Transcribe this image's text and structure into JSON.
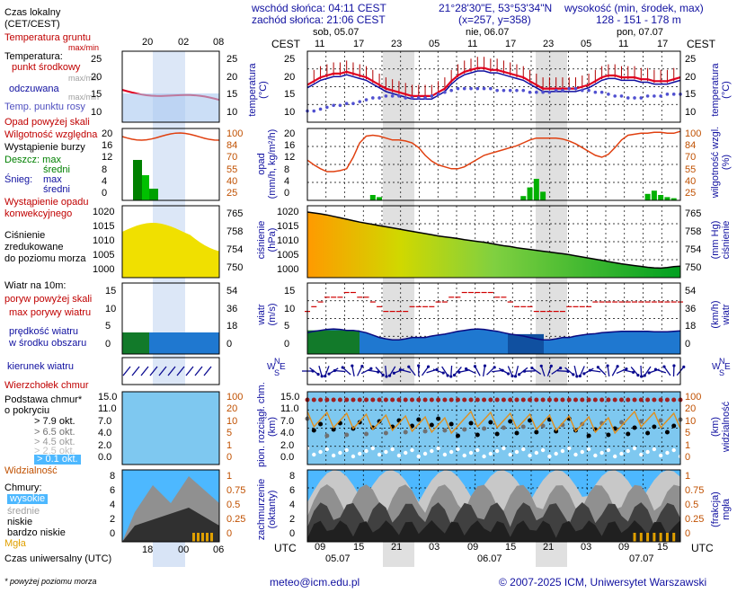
{
  "header": {
    "sunrise": "wschód słońca: 04:11 CEST",
    "sunset": "zachód słońca: 21:06 CEST",
    "coords": "21°28'30\"E, 53°53'34\"N",
    "grid": "(x=257, y=358)",
    "elevation_label": "wysokość (min, środek, max)",
    "elevation_values": "128 - 151 - 178 m"
  },
  "legend": {
    "local_time": "Czas lokalny\n(CET/CEST)",
    "ground_temp": "Temperatura gruntu",
    "maxmin": "max/min",
    "temperature": "Temperatura:",
    "point_mid": "punkt środkowy",
    "max_min": "max/min",
    "feels": "odczuwana",
    "feels_maxmin": "max/min",
    "dew": "Temp. punktu rosy",
    "precip_above": "Opad powyżej skali",
    "humidity": "Wilgotność względna",
    "storm": "Wystąpienie burzy",
    "rain": "Deszcz: max",
    "rain_mid": "średni",
    "snow": "Śnieg:",
    "snow_max": "max",
    "snow_mid": "średni",
    "precip_occ": "Wystąpienie opadu\nkonwekcyjnego",
    "pressure": "Ciśnienie\nzredukowane\ndo poziomu morza",
    "wind": "Wiatr na 10m:",
    "gusts_above": "poryw powyżej skali",
    "gust_max": "max porywy wiatru",
    "wind_speed": "prędkość wiatru\nw środku obszaru",
    "wind_dir": "kierunek wiatru",
    "cb_top": "Wierzchołek chmur",
    "cloud_base": "Podstawa chmur*\no pokryciu",
    "c79": "> 7.9 okt.",
    "c65": "> 6.5 okt.",
    "c45": "> 4.5 okt.",
    "c25": "> 2.5 okt.",
    "c01": "> 0.1 okt.",
    "visibility": "Widzialność",
    "clouds": "Chmury:",
    "high": "wysokie",
    "mid": "średnie",
    "low": "niskie",
    "very_low": "bardzo niskie",
    "fog": "Mgła",
    "utc": "Czas uniwersalny (UTC)",
    "footnote": "* powyżej poziomu morza"
  },
  "axis_titles": {
    "cest": "CEST",
    "utc": "UTC",
    "temp_l": "temperatura\n(°C)",
    "temp_r": "temperatura\n(°C)",
    "precip_l": "opad\n(mm/h, kg/m²/h)",
    "hum_r": "wilgotność wzgl.\n(%)",
    "press_l": "ciśnienie\n(hPa)",
    "press_r": "(mm Hg)\nciśnienie",
    "wind_l": "wiatr\n(m/s)",
    "wind_r": "(km/h)\nwiatr",
    "cloud_l": "pion. rozciągł. chm.\n(km)",
    "vis_r": "(km)\nwidzialność",
    "cov_l": "zachmurzenie\n(oktanty)",
    "fog_r": "(frakcja)\nmgła"
  },
  "compass": {
    "n": "N",
    "s": "S",
    "w": "W",
    "e": "E"
  },
  "days_top": [
    "sob, 05.07",
    "nie, 06.07",
    "pon, 07.07"
  ],
  "days_bottom": [
    "05.07",
    "06.07",
    "07.07"
  ],
  "cest_ticks": [
    "11",
    "17",
    "23",
    "05",
    "11",
    "17",
    "23",
    "05",
    "11",
    "17"
  ],
  "utc_ticks": [
    "09",
    "15",
    "21",
    "03",
    "09",
    "15",
    "21",
    "03",
    "09",
    "15"
  ],
  "legend_top_ticks": [
    "20",
    "02",
    "08"
  ],
  "legend_bottom_ticks": [
    "18",
    "00",
    "06"
  ],
  "footer": {
    "email": "meteo@icm.edu.pl",
    "copyright": "© 2007-2025 ICM, Uniwersytet Warszawski"
  },
  "colors": {
    "red": "#c80000",
    "blue": "#1010a0",
    "green": "#00a000",
    "orange": "#e07000",
    "night": "#e0e0e0",
    "brown": "#a02020"
  },
  "chart_data": [
    {
      "type": "line",
      "name": "temperature",
      "x": [
        "09",
        "10",
        "11",
        "12",
        "13",
        "14",
        "15",
        "16",
        "17",
        "18",
        "19",
        "20",
        "21",
        "22",
        "23",
        "00",
        "01",
        "02",
        "03",
        "04",
        "05",
        "06",
        "07",
        "08",
        "09",
        "10",
        "11",
        "12",
        "13",
        "14",
        "15",
        "16",
        "17",
        "18",
        "19",
        "20",
        "21",
        "22",
        "23",
        "00",
        "01",
        "02",
        "03",
        "04",
        "05",
        "06",
        "07",
        "08",
        "09",
        "10",
        "11",
        "12",
        "13",
        "14",
        "15",
        "16",
        "17",
        "18"
      ],
      "ylim": [
        8,
        27
      ],
      "yticks_left": [
        "25",
        "20",
        "15",
        "10"
      ],
      "yticks_right": [
        "25",
        "20",
        "15",
        "10"
      ],
      "series": [
        {
          "values": [
            18,
            19,
            20,
            20.5,
            21,
            21,
            21.5,
            21,
            20.5,
            20,
            19,
            18,
            17,
            16.5,
            16,
            15.5,
            15,
            15,
            15,
            15,
            16,
            17,
            19,
            20.5,
            21.5,
            22,
            22.5,
            22.5,
            22,
            22,
            21.5,
            21,
            20.5,
            20,
            19,
            18,
            17,
            17,
            17,
            17,
            17,
            17,
            17.5,
            18,
            19,
            20,
            20.5,
            20.5,
            20,
            20,
            20,
            19.5,
            19.5,
            19,
            19,
            19,
            19.5,
            20
          ]
        },
        {
          "values": [
            11,
            11,
            11.5,
            12,
            12.5,
            12.5,
            13,
            13,
            13.5,
            14,
            14.5,
            14.5,
            15,
            15,
            15,
            14.5,
            14.5,
            14.5,
            14.5,
            15,
            15.5,
            16,
            16.5,
            17,
            17,
            17,
            17,
            17,
            17,
            16.5,
            16.5,
            16.5,
            16.5,
            16.5,
            16,
            16,
            16,
            16,
            16.5,
            16.5,
            17,
            17,
            16.5,
            16.5,
            16,
            16,
            15.5,
            15,
            15,
            14.5,
            14.5,
            14.5,
            15,
            15,
            15,
            15.5,
            15.5,
            15.5
          ]
        }
      ]
    },
    {
      "type": "line",
      "name": "humidity-precip",
      "yticks_left": [
        "20",
        "16",
        "12",
        "8",
        "4",
        "0"
      ],
      "yticks_right": [
        "100",
        "84",
        "70",
        "55",
        "40",
        "25"
      ],
      "series": [
        {
          "values": [
            67,
            62,
            58,
            55,
            55,
            56,
            58,
            70,
            85,
            92,
            93,
            92,
            90,
            88,
            88,
            87,
            85,
            80,
            72,
            66,
            62,
            60,
            58,
            58,
            60,
            64,
            68,
            72,
            74,
            76,
            78,
            80,
            82,
            85,
            88,
            90,
            90,
            90,
            90,
            89,
            87,
            84,
            80,
            76,
            72,
            70,
            73,
            80,
            88,
            93,
            94,
            95,
            95,
            96,
            96,
            95,
            95,
            97
          ]
        },
        {
          "values": [
            0,
            0,
            0,
            0,
            0,
            0,
            0,
            0,
            0,
            0,
            0.5,
            0.3,
            0,
            0,
            0,
            0,
            0,
            0,
            0,
            0,
            0,
            0,
            0,
            0,
            0,
            0,
            0,
            0,
            0,
            0,
            0,
            0,
            0,
            0.4,
            1.2,
            2.0,
            0.8,
            0,
            0,
            0,
            0,
            0,
            0,
            0,
            0,
            0,
            0,
            0,
            0,
            0,
            0,
            0,
            0.6,
            0.9,
            0.5,
            0.3,
            0.2,
            0
          ]
        }
      ]
    },
    {
      "type": "area",
      "name": "pressure",
      "yticks_left": [
        "1020",
        "1015",
        "1010",
        "1005",
        "1000"
      ],
      "yticks_right": [
        "765",
        "758",
        "754",
        "750"
      ],
      "series": [
        {
          "values": [
            1019.8,
            1019.5,
            1019.2,
            1018.8,
            1018.3,
            1017.8,
            1017.3,
            1016.8,
            1016.3,
            1015.9,
            1015.5,
            1015.1,
            1014.7,
            1014.3,
            1013.9,
            1013.5,
            1013.1,
            1012.7,
            1012.3,
            1011.9,
            1011.5,
            1011.2,
            1010.9,
            1010.6,
            1010.2,
            1009.9,
            1009.6,
            1009.3,
            1008.9,
            1008.5,
            1008.1,
            1007.8,
            1007.4,
            1007.1,
            1006.8,
            1006.5,
            1006.2,
            1005.9,
            1005.6,
            1005.3,
            1005.0,
            1004.6,
            1004.2,
            1003.8,
            1003.4,
            1003.0,
            1002.6,
            1002.2,
            1001.8,
            1001.5,
            1001.2,
            1000.9,
            1000.6,
            1000.4,
            1000.3,
            1000.5,
            1000.8,
            1001.0
          ]
        }
      ]
    },
    {
      "type": "line",
      "name": "wind",
      "yticks_left": [
        "15",
        "10",
        "5",
        "0"
      ],
      "yticks_right": [
        "54",
        "36",
        "18",
        "0"
      ],
      "series": [
        {
          "values": [
            4.5,
            4.8,
            5,
            5.2,
            5.3,
            5.2,
            5,
            5,
            4.8,
            4.5,
            4,
            3.5,
            3.2,
            3,
            3,
            3.2,
            3.5,
            3.5,
            3.5,
            3.8,
            4,
            4.2,
            4.5,
            4.8,
            5,
            5.2,
            5.3,
            5.2,
            5,
            4.8,
            4.5,
            4.2,
            4,
            3.8,
            3.5,
            3.2,
            3,
            3,
            3.2,
            3.5,
            3.5,
            3.8,
            4,
            4.2,
            4.3,
            4.5,
            4.6,
            4.7,
            4.8,
            4.8,
            4.8,
            4.8,
            4.8,
            4.7,
            4.7,
            4.7,
            4.8,
            4.9
          ]
        },
        {
          "values": [
            9,
            10,
            11,
            12,
            12,
            12,
            13,
            13,
            12,
            12,
            11,
            10,
            9,
            9,
            9,
            9,
            10,
            10,
            10,
            10,
            11,
            11,
            12,
            12,
            13,
            13,
            13,
            13,
            13,
            12,
            12,
            11,
            10,
            10,
            10,
            9,
            9,
            9,
            9,
            9,
            10,
            10,
            10,
            10,
            11,
            11,
            11,
            11,
            11,
            11,
            11,
            11,
            11,
            11,
            11,
            11,
            11,
            11
          ]
        }
      ]
    },
    {
      "type": "scatter",
      "name": "cloud-visibility",
      "yticks_left": [
        "15.0",
        "11.0",
        "7.0",
        "4.0",
        "2.0",
        "0.0"
      ],
      "yticks_right": [
        "100",
        "20",
        "10",
        "5",
        "1",
        "0"
      ]
    },
    {
      "type": "area",
      "name": "cloud-cover",
      "yticks_left": [
        "8",
        "6",
        "4",
        "2",
        "0"
      ],
      "yticks_right": [
        "1",
        "0.75",
        "0.5",
        "0.25",
        "0"
      ]
    }
  ]
}
